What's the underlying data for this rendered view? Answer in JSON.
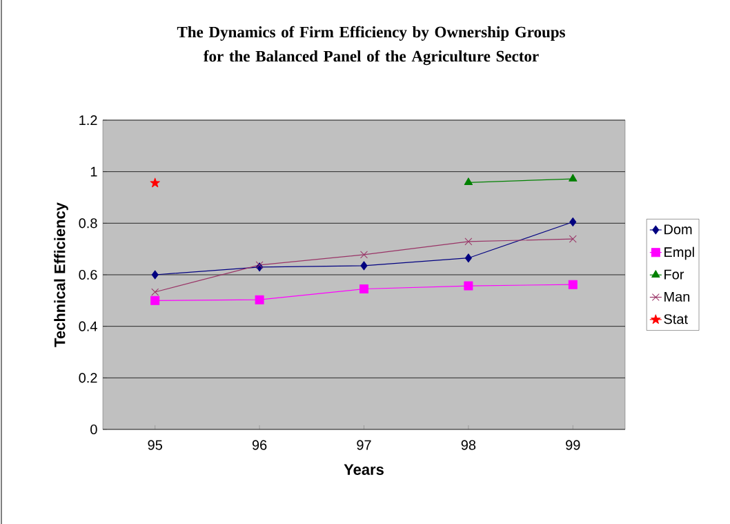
{
  "chart_data": {
    "type": "line",
    "title": "The Dynamics of Firm Efficiency by Ownership Groups for the Balanced Panel of the Agriculture Sector",
    "xlabel": "Years",
    "ylabel": "Technical Efficiency",
    "categories": [
      "95",
      "96",
      "97",
      "98",
      "99"
    ],
    "series": [
      {
        "name": "Dom",
        "color": "#000080",
        "marker": "diamond",
        "values": [
          0.6,
          0.63,
          0.635,
          0.665,
          0.805
        ]
      },
      {
        "name": "Empl",
        "color": "#ff00ff",
        "marker": "square",
        "values": [
          0.5,
          0.503,
          0.545,
          0.557,
          0.562
        ]
      },
      {
        "name": "For",
        "color": "#008000",
        "marker": "triangle",
        "values": [
          null,
          null,
          null,
          0.958,
          0.972
        ]
      },
      {
        "name": "Man",
        "color": "#993366",
        "marker": "cross",
        "values": [
          0.533,
          0.638,
          0.678,
          0.729,
          0.739
        ]
      },
      {
        "name": "Stat",
        "color": "#ff0000",
        "marker": "star",
        "values": [
          0.956,
          null,
          null,
          null,
          null
        ]
      }
    ],
    "ylim": [
      0,
      1.2
    ],
    "yticks": [
      0,
      0.2,
      0.4,
      0.6,
      0.8,
      1,
      1.2
    ],
    "grid": "y",
    "legend": "right"
  }
}
